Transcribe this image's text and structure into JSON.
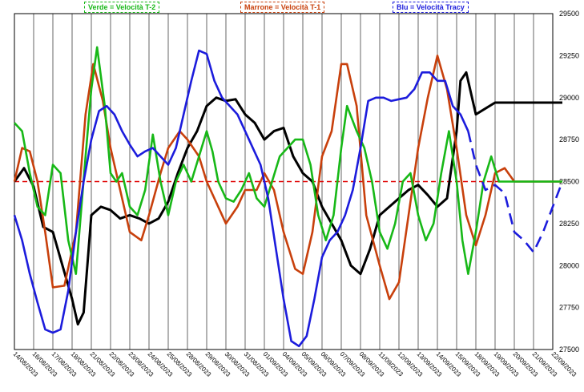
{
  "chart_data": {
    "type": "line",
    "title": "",
    "xlabel": "",
    "ylabel": "",
    "ylim": [
      27500,
      29500
    ],
    "yticks": [
      27500,
      27750,
      28000,
      28250,
      28500,
      28750,
      29000,
      29250,
      29500
    ],
    "x_tick_labels": [
      "14/08/2023",
      "16/08/2023",
      "17/08/2023",
      "18/08/2023",
      "21/08/2023",
      "22/08/2023",
      "23/08/2023",
      "24/08/2023",
      "25/08/2023",
      "28/08/2023",
      "29/08/2023",
      "30/08/2023",
      "31/08/2023",
      "01/09/2023",
      "04/09/2023",
      "05/09/2023",
      "06/09/2023",
      "07/09/2023",
      "08/09/2023",
      "11/09/2023",
      "12/09/2023",
      "13/09/2023",
      "14/09/2023",
      "15/09/2023",
      "18/09/2023",
      "19/09/2023",
      "20/09/2023",
      "21/09/2023",
      "22/09/2023"
    ],
    "grid": "vertical",
    "reference_level": 28500,
    "legend": [
      {
        "text": "Verde = Velocità T-2",
        "color": "#17b817"
      },
      {
        "text": "Marrone = Velocità T-1",
        "color": "#c8400c"
      },
      {
        "text": "Blu = Velocità Tracy",
        "color": "#1c1cdc"
      }
    ],
    "series": [
      {
        "key": "price",
        "color": "#000000",
        "x": [
          0,
          0.5,
          1,
          1.5,
          2,
          2.5,
          3,
          3.3,
          3.6,
          4,
          4.5,
          5,
          5.5,
          6,
          6.5,
          7,
          7.5,
          8,
          8.5,
          9,
          9.5,
          10,
          10.5,
          11,
          11.5,
          12,
          12.5,
          13,
          13.5,
          14,
          14.5,
          15,
          15.5,
          16,
          16.5,
          17,
          17.5,
          18,
          18.5,
          19,
          19.5,
          20,
          20.5,
          21,
          21.5,
          22,
          22.5,
          23,
          23.2,
          23.5,
          24,
          25,
          26,
          27,
          28,
          28.5
        ],
        "y": [
          28500,
          28580,
          28470,
          28230,
          28200,
          28000,
          27800,
          27650,
          27720,
          28300,
          28350,
          28330,
          28280,
          28300,
          28280,
          28250,
          28280,
          28380,
          28550,
          28700,
          28800,
          28950,
          29000,
          28980,
          28990,
          28900,
          28850,
          28750,
          28800,
          28820,
          28650,
          28550,
          28500,
          28350,
          28250,
          28150,
          28000,
          27950,
          28100,
          28300,
          28350,
          28400,
          28450,
          28480,
          28420,
          28350,
          28400,
          28800,
          29100,
          29150,
          28900,
          28970,
          28970,
          28970,
          28970,
          28970
        ]
      },
      {
        "key": "brown",
        "color": "#c8400c",
        "x": [
          0,
          0.4,
          0.8,
          1.2,
          1.6,
          2,
          2.6,
          3.2,
          3.7,
          4.1,
          4.6,
          5,
          5.6,
          6,
          6.6,
          7,
          7.6,
          8,
          8.6,
          9,
          9.6,
          10,
          10.6,
          11,
          11.6,
          12,
          12.6,
          13,
          13.5,
          14,
          14.6,
          15,
          15.5,
          16,
          16.5,
          17,
          17.3,
          17.8,
          18.3,
          19,
          19.5,
          20,
          20.5,
          21,
          21.5,
          22,
          22.5,
          23,
          23.5,
          24,
          24.5,
          25,
          25.5,
          26,
          27,
          28,
          28.5
        ],
        "y": [
          28500,
          28700,
          28680,
          28500,
          28200,
          27870,
          27880,
          28200,
          28900,
          29200,
          28980,
          28700,
          28400,
          28200,
          28150,
          28300,
          28550,
          28700,
          28800,
          28750,
          28650,
          28500,
          28350,
          28250,
          28350,
          28450,
          28450,
          28550,
          28450,
          28200,
          27980,
          27950,
          28200,
          28650,
          28800,
          29200,
          29200,
          28950,
          28300,
          28000,
          27800,
          27900,
          28300,
          28700,
          29000,
          29250,
          29050,
          28700,
          28300,
          28120,
          28300,
          28550,
          28580,
          28500,
          28500,
          28500,
          28500
        ]
      },
      {
        "key": "green",
        "color": "#17b817",
        "x": [
          0,
          0.4,
          0.8,
          1.2,
          1.6,
          2,
          2.4,
          2.8,
          3.2,
          3.7,
          4,
          4.3,
          4.7,
          5,
          5.3,
          5.6,
          6,
          6.4,
          6.8,
          7.2,
          7.6,
          8,
          8.4,
          8.8,
          9.2,
          9.6,
          10,
          10.3,
          10.6,
          11,
          11.4,
          11.8,
          12.2,
          12.6,
          13,
          13.4,
          13.8,
          14.2,
          14.6,
          15,
          15.4,
          15.8,
          16.2,
          16.6,
          17,
          17.3,
          17.8,
          18.2,
          18.6,
          19,
          19.4,
          19.8,
          20.2,
          20.6,
          21,
          21.4,
          21.8,
          22.2,
          22.6,
          23,
          23.3,
          23.6,
          24,
          24.4,
          24.8,
          25.2,
          26,
          27,
          28,
          28.5
        ],
        "y": [
          28850,
          28800,
          28550,
          28350,
          28300,
          28600,
          28550,
          28150,
          27950,
          28650,
          29050,
          29300,
          28950,
          28550,
          28500,
          28550,
          28350,
          28300,
          28450,
          28780,
          28500,
          28300,
          28500,
          28600,
          28500,
          28650,
          28800,
          28680,
          28500,
          28400,
          28380,
          28450,
          28550,
          28400,
          28350,
          28500,
          28650,
          28700,
          28750,
          28750,
          28600,
          28300,
          28150,
          28300,
          28700,
          28950,
          28800,
          28700,
          28500,
          28200,
          28100,
          28250,
          28500,
          28550,
          28300,
          28150,
          28250,
          28550,
          28800,
          28500,
          28150,
          27950,
          28200,
          28500,
          28650,
          28500,
          28500,
          28500,
          28500,
          28500
        ]
      },
      {
        "key": "blue",
        "color": "#1c1cdc",
        "x": [
          0,
          0.4,
          0.8,
          1.2,
          1.6,
          2,
          2.4,
          2.8,
          3.2,
          3.6,
          4,
          4.4,
          4.8,
          5.2,
          5.6,
          6,
          6.4,
          6.8,
          7.2,
          7.6,
          8,
          8.4,
          8.8,
          9.2,
          9.6,
          10,
          10.4,
          10.8,
          11.2,
          11.6,
          12,
          12.4,
          12.8,
          13.2,
          13.6,
          14,
          14.4,
          14.8,
          15.2,
          15.6,
          16,
          16.4,
          16.8,
          17.2,
          17.6,
          18,
          18.4,
          18.8,
          19.2,
          19.6,
          20,
          20.4,
          20.8,
          21.2,
          21.6,
          22,
          22.4,
          22.8,
          23.2,
          23.6
        ],
        "y": [
          28300,
          28150,
          27950,
          27780,
          27620,
          27600,
          27620,
          27850,
          28200,
          28500,
          28750,
          28920,
          28950,
          28900,
          28800,
          28720,
          28650,
          28680,
          28700,
          28650,
          28600,
          28700,
          28900,
          29100,
          29280,
          29260,
          29100,
          29000,
          28950,
          28900,
          28800,
          28700,
          28600,
          28400,
          28100,
          27800,
          27550,
          27520,
          27580,
          27800,
          28050,
          28150,
          28200,
          28300,
          28450,
          28700,
          28980,
          29000,
          29000,
          28980,
          28990,
          29000,
          29050,
          29150,
          29150,
          29100,
          29100,
          28950,
          28900,
          28800
        ]
      },
      {
        "key": "blue_forecast",
        "color": "#1c1cdc",
        "dashed": true,
        "x": [
          23.6,
          24,
          24.5,
          25,
          25.5,
          26,
          26.5,
          27,
          27.5,
          28,
          28.5
        ],
        "y": [
          28800,
          28600,
          28450,
          28480,
          28430,
          28200,
          28150,
          28080,
          28200,
          28350,
          28500
        ]
      }
    ]
  }
}
